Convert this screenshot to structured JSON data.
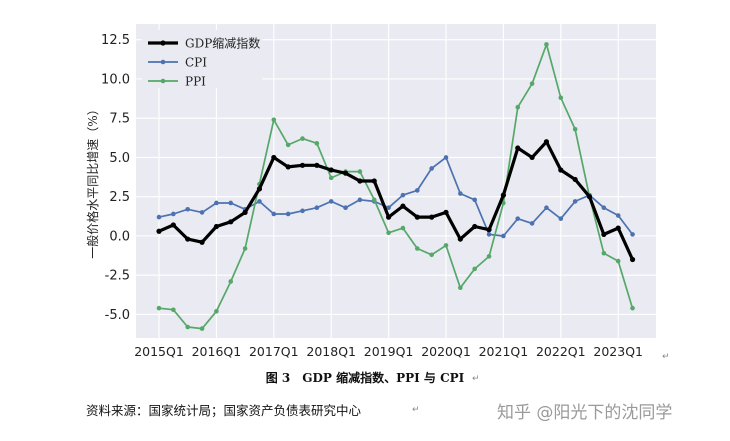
{
  "chart_data": {
    "type": "line",
    "title": "",
    "xlabel": "",
    "ylabel": "一般价格水平同比增速（%）",
    "ylim": [
      -6.5,
      13.5
    ],
    "yticks": [
      "12.5",
      "10.0",
      "7.5",
      "5.0",
      "2.5",
      "0.0",
      "-2.5",
      "-5.0"
    ],
    "xticks": [
      "2015Q1",
      "2016Q1",
      "2017Q1",
      "2018Q1",
      "2019Q1",
      "2020Q1",
      "2021Q1",
      "2022Q1",
      "2023Q1"
    ],
    "x": [
      "2015Q1",
      "2015Q2",
      "2015Q3",
      "2015Q4",
      "2016Q1",
      "2016Q2",
      "2016Q3",
      "2016Q4",
      "2017Q1",
      "2017Q2",
      "2017Q3",
      "2017Q4",
      "2018Q1",
      "2018Q2",
      "2018Q3",
      "2018Q4",
      "2019Q1",
      "2019Q2",
      "2019Q3",
      "2019Q4",
      "2020Q1",
      "2020Q2",
      "2020Q3",
      "2020Q4",
      "2021Q1",
      "2021Q2",
      "2021Q3",
      "2021Q4",
      "2022Q1",
      "2022Q2",
      "2022Q3",
      "2022Q4",
      "2023Q1",
      "2023Q2"
    ],
    "grid": true,
    "legend_position": "top-left",
    "series": [
      {
        "name": "GDP缩减指数",
        "color": "#000000",
        "width": 3.2,
        "values": [
          0.3,
          0.7,
          -0.2,
          -0.4,
          0.6,
          0.9,
          1.5,
          3.0,
          5.0,
          4.4,
          4.5,
          4.5,
          4.2,
          4.0,
          3.5,
          3.5,
          1.2,
          1.9,
          1.2,
          1.2,
          1.5,
          -0.2,
          0.6,
          0.4,
          2.6,
          5.6,
          5.0,
          6.0,
          4.2,
          3.6,
          2.5,
          0.1,
          0.5,
          -1.5
        ]
      },
      {
        "name": "CPI",
        "color": "#4c72b0",
        "width": 1.7,
        "values": [
          1.2,
          1.4,
          1.7,
          1.5,
          2.1,
          2.1,
          1.7,
          2.2,
          1.4,
          1.4,
          1.6,
          1.8,
          2.2,
          1.8,
          2.3,
          2.2,
          1.8,
          2.6,
          2.9,
          4.3,
          5.0,
          2.7,
          2.3,
          0.1,
          0.0,
          1.1,
          0.8,
          1.8,
          1.1,
          2.2,
          2.6,
          1.8,
          1.3,
          0.1
        ]
      },
      {
        "name": "PPI",
        "color": "#55a868",
        "width": 1.7,
        "values": [
          -4.6,
          -4.7,
          -5.8,
          -5.9,
          -4.8,
          -2.9,
          -0.8,
          3.3,
          7.4,
          5.8,
          6.2,
          5.9,
          3.7,
          4.1,
          4.1,
          2.3,
          0.2,
          0.5,
          -0.8,
          -1.2,
          -0.6,
          -3.3,
          -2.1,
          -1.3,
          2.1,
          8.2,
          9.7,
          12.2,
          8.8,
          6.8,
          2.5,
          -1.1,
          -1.6,
          -4.6
        ]
      }
    ]
  },
  "caption": "图 3　GDP 缩减指数、PPI 与 CPI",
  "source": "资料来源：国家统计局；国家资产负债表研究中心",
  "watermark": "知乎 @阳光下的沈同学"
}
